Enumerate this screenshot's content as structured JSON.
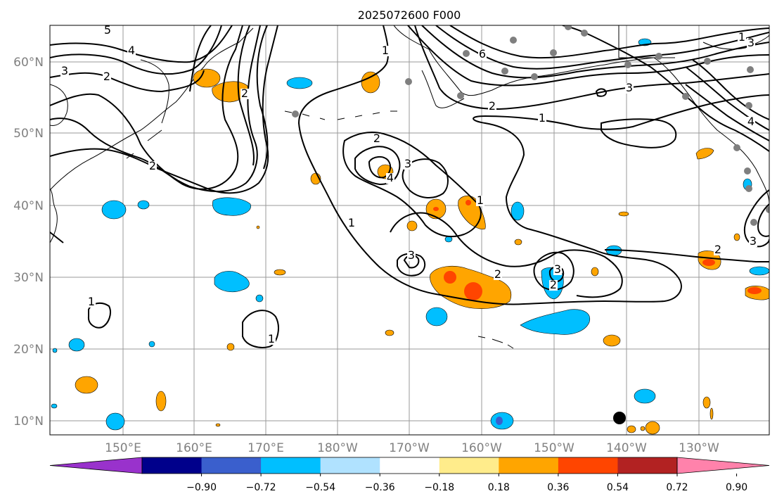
{
  "title": "2025072600 F000",
  "map": {
    "lon_labels": [
      "150°E",
      "160°E",
      "170°E",
      "180°W",
      "170°W",
      "160°W",
      "150°W",
      "140°W",
      "130°W"
    ],
    "lat_labels": [
      "60°N",
      "50°N",
      "40°N",
      "30°N",
      "20°N",
      "10°N"
    ],
    "contour_labels": [
      "5",
      "4",
      "3",
      "2",
      "2",
      "6",
      "1",
      "1",
      "2",
      "1",
      "2",
      "3",
      "4",
      "3",
      "2",
      "1",
      "3",
      "2",
      "3",
      "2",
      "1",
      "1",
      "1",
      "4",
      "3",
      "2",
      "3"
    ]
  },
  "colorbar": {
    "ticks": [
      "−0.90",
      "−0.72",
      "−0.54",
      "−0.36",
      "−0.18",
      "0.18",
      "0.36",
      "0.54",
      "0.72",
      "0.90"
    ],
    "colors": [
      "#9932cc",
      "#00008b",
      "#3a5fcd",
      "#00bfff",
      "#b0e2ff",
      "#ffffff",
      "#ffec8b",
      "#ffa500",
      "#ff4500",
      "#b22222",
      "#ff82ab"
    ]
  }
}
